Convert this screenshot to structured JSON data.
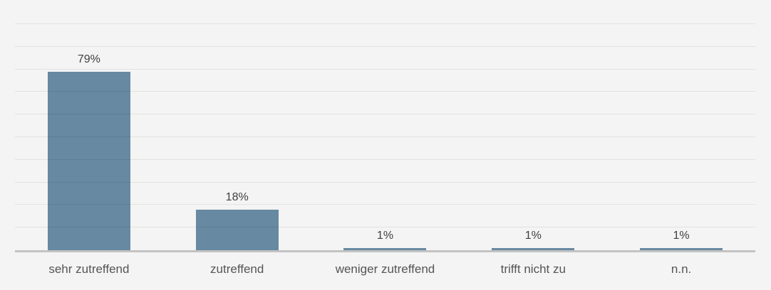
{
  "chart_data": {
    "type": "bar",
    "title": "",
    "xlabel": "",
    "ylabel": "",
    "categories": [
      "sehr zutreffend",
      "zutreffend",
      "weniger zutreffend",
      "trifft nicht zu",
      "n.n."
    ],
    "values": [
      79,
      18,
      1,
      1,
      1
    ],
    "value_labels": [
      "79%",
      "18%",
      "1%",
      "1%",
      "1%"
    ],
    "ylim": [
      0,
      100
    ],
    "grid": "horizontal gridlines every 10%, no y-axis tick labels",
    "legend": "none",
    "colors": {
      "bar": "#6789a1",
      "background": "#f4f4f4",
      "gridline": "rgba(0,0,0,0.07)",
      "axis_line": "#c3c3c3",
      "value_label_text": "#3f3f3f",
      "category_label_text": "#555555"
    }
  }
}
